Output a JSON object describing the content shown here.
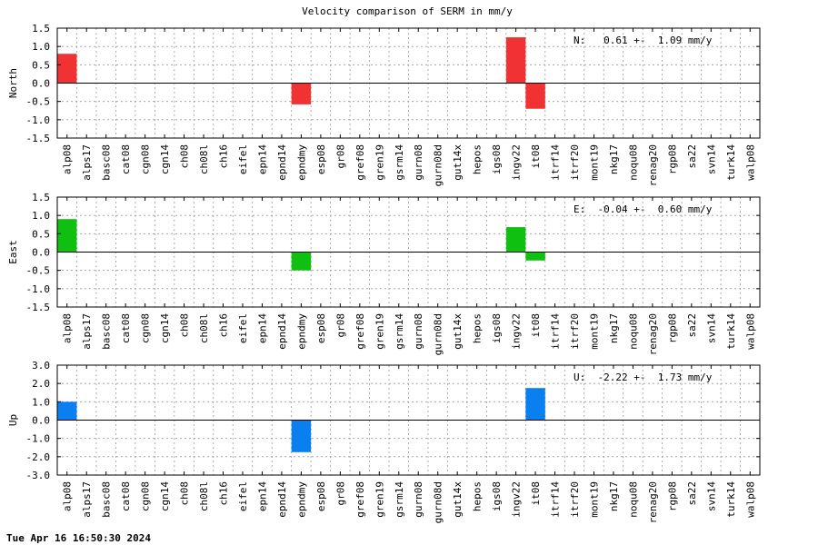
{
  "chart_data": {
    "type": "bar",
    "title": "Velocity comparison of SERM in mm/y",
    "categories": [
      "alp08",
      "alps17",
      "basc08",
      "cat08",
      "cgn08",
      "cgn14",
      "ch08",
      "ch08l",
      "ch16",
      "eifel",
      "epn14",
      "epnd14",
      "epndmy",
      "esp08",
      "gr08",
      "gref08",
      "gren19",
      "gsrm14",
      "gurn08",
      "gurn08d",
      "gut14x",
      "hepos",
      "igs08",
      "ingv22",
      "it08",
      "itrf14",
      "itrf20",
      "mont19",
      "nkg17",
      "noqu08",
      "renag20",
      "rgp08",
      "sa22",
      "svn14",
      "turk14",
      "walp08"
    ],
    "grid": true,
    "panels": [
      {
        "ylabel": "North",
        "ylim": [
          -1.5,
          1.5
        ],
        "yticks": [
          "1.5",
          "1.0",
          "0.5",
          "0.0",
          "-0.5",
          "-1.0",
          "-1.5"
        ],
        "ytick_values": [
          1.5,
          1.0,
          0.5,
          0.0,
          -0.5,
          -1.0,
          -1.5
        ],
        "color": "#f03232",
        "annotation": "N:   0.61 +-  1.09 mm/y",
        "values": [
          0.8,
          0,
          0,
          0,
          0,
          0,
          0,
          0,
          0,
          0,
          0,
          0,
          -0.58,
          0,
          0,
          0,
          0,
          0,
          0,
          0,
          0,
          0,
          0,
          1.25,
          -0.7,
          0,
          0,
          0,
          0,
          0,
          0,
          0,
          0,
          0,
          0,
          0
        ]
      },
      {
        "ylabel": "East",
        "ylim": [
          -1.5,
          1.5
        ],
        "yticks": [
          "1.5",
          "1.0",
          "0.5",
          "0.0",
          "-0.5",
          "-1.0",
          "-1.5"
        ],
        "ytick_values": [
          1.5,
          1.0,
          0.5,
          0.0,
          -0.5,
          -1.0,
          -1.5
        ],
        "color": "#10c010",
        "annotation": "E:  -0.04 +-  0.60 mm/y",
        "values": [
          0.9,
          0,
          0,
          0,
          0,
          0,
          0,
          0,
          0,
          0,
          0,
          0,
          -0.5,
          0,
          0,
          0,
          0,
          0,
          0,
          0,
          0,
          0,
          0,
          0.68,
          -0.23,
          0,
          0,
          0,
          0,
          0,
          0,
          0,
          0,
          0,
          0,
          0
        ]
      },
      {
        "ylabel": "Up",
        "ylim": [
          -3.0,
          3.0
        ],
        "yticks": [
          "3.0",
          "2.0",
          "1.0",
          "0.0",
          "-1.0",
          "-2.0",
          "-3.0"
        ],
        "ytick_values": [
          3.0,
          2.0,
          1.0,
          0.0,
          -1.0,
          -2.0,
          -3.0
        ],
        "color": "#0a80f0",
        "annotation": "U:  -2.22 +-  1.73 mm/y",
        "values": [
          1.0,
          0,
          0,
          0,
          0,
          0,
          0,
          0,
          0,
          0,
          0,
          0,
          -1.75,
          0,
          0,
          0,
          0,
          0,
          0,
          0,
          0,
          0,
          0,
          0,
          1.75,
          0,
          0,
          0,
          0,
          0,
          0,
          0,
          0,
          0,
          0,
          0
        ]
      }
    ]
  },
  "footer": {
    "timestamp": "Tue Apr 16 16:50:30 2024"
  }
}
